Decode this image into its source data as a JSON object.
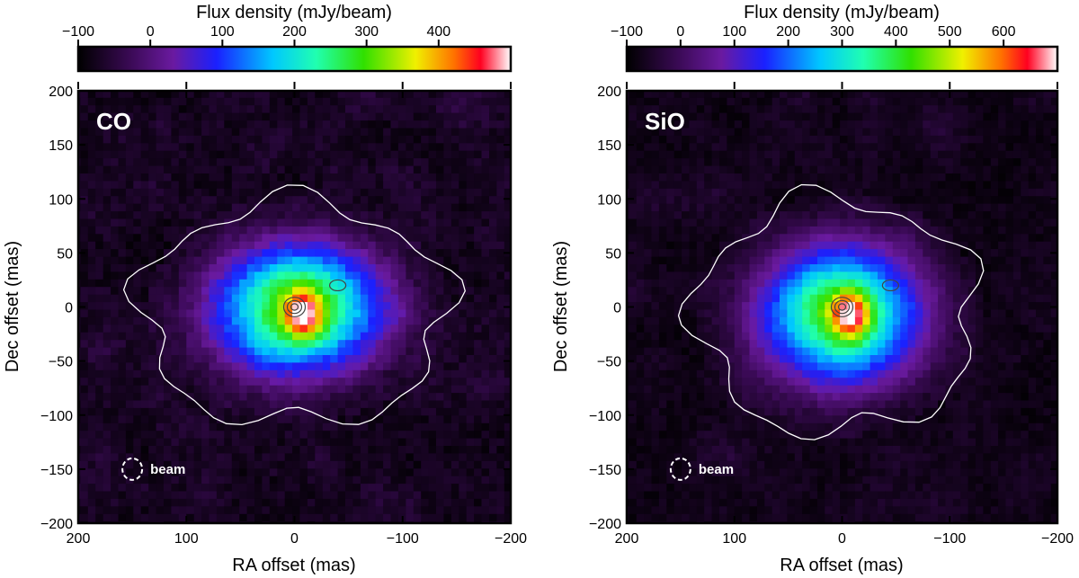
{
  "chart_data": [
    {
      "type": "heatmap",
      "panel_label": "CO",
      "colorbar": {
        "title": "Flux density (mJy/beam)",
        "ticks": [
          -100,
          0,
          100,
          200,
          300,
          400
        ],
        "tick_labels": [
          "−100",
          "0",
          "100",
          "200",
          "300",
          "400"
        ],
        "range": [
          -100,
          500
        ]
      },
      "xlabel": "RA offset (mas)",
      "ylabel": "Dec offset (mas)",
      "xlim": [
        200,
        -200
      ],
      "ylim": [
        -200,
        200
      ],
      "xticks": [
        200,
        100,
        0,
        -100,
        -200
      ],
      "xtick_labels": [
        "200",
        "100",
        "0",
        "−100",
        "−200"
      ],
      "yticks": [
        200,
        150,
        100,
        50,
        0,
        -50,
        -100,
        -150,
        -200
      ],
      "ytick_labels": [
        "200",
        "150",
        "100",
        "50",
        "0",
        "−50",
        "−100",
        "−150",
        "−200"
      ],
      "beam": {
        "label": "beam",
        "ra": 150,
        "dec": -150
      },
      "contour_continuum_center": [
        0,
        0
      ],
      "secondary_source": [
        -40,
        20
      ],
      "peak_flux": 480
    },
    {
      "type": "heatmap",
      "panel_label": "SiO",
      "colorbar": {
        "title": "Flux density (mJy/beam)",
        "ticks": [
          -100,
          0,
          100,
          200,
          300,
          400,
          500,
          600
        ],
        "tick_labels": [
          "−100",
          "0",
          "100",
          "200",
          "300",
          "400",
          "500",
          "600"
        ],
        "range": [
          -100,
          700
        ]
      },
      "xlabel": "RA offset (mas)",
      "ylabel": "Dec offset (mas)",
      "xlim": [
        200,
        -200
      ],
      "ylim": [
        -200,
        200
      ],
      "xticks": [
        200,
        100,
        0,
        -100,
        -200
      ],
      "xtick_labels": [
        "200",
        "100",
        "0",
        "−100",
        "−200"
      ],
      "yticks": [
        200,
        150,
        100,
        50,
        0,
        -50,
        -100,
        -150,
        -200
      ],
      "ytick_labels": [
        "200",
        "150",
        "100",
        "50",
        "0",
        "−50",
        "−100",
        "−150",
        "−200"
      ],
      "beam": {
        "label": "beam",
        "ra": 150,
        "dec": -150
      },
      "contour_continuum_center": [
        0,
        0
      ],
      "secondary_source": [
        -45,
        20
      ],
      "peak_flux": 690
    }
  ]
}
